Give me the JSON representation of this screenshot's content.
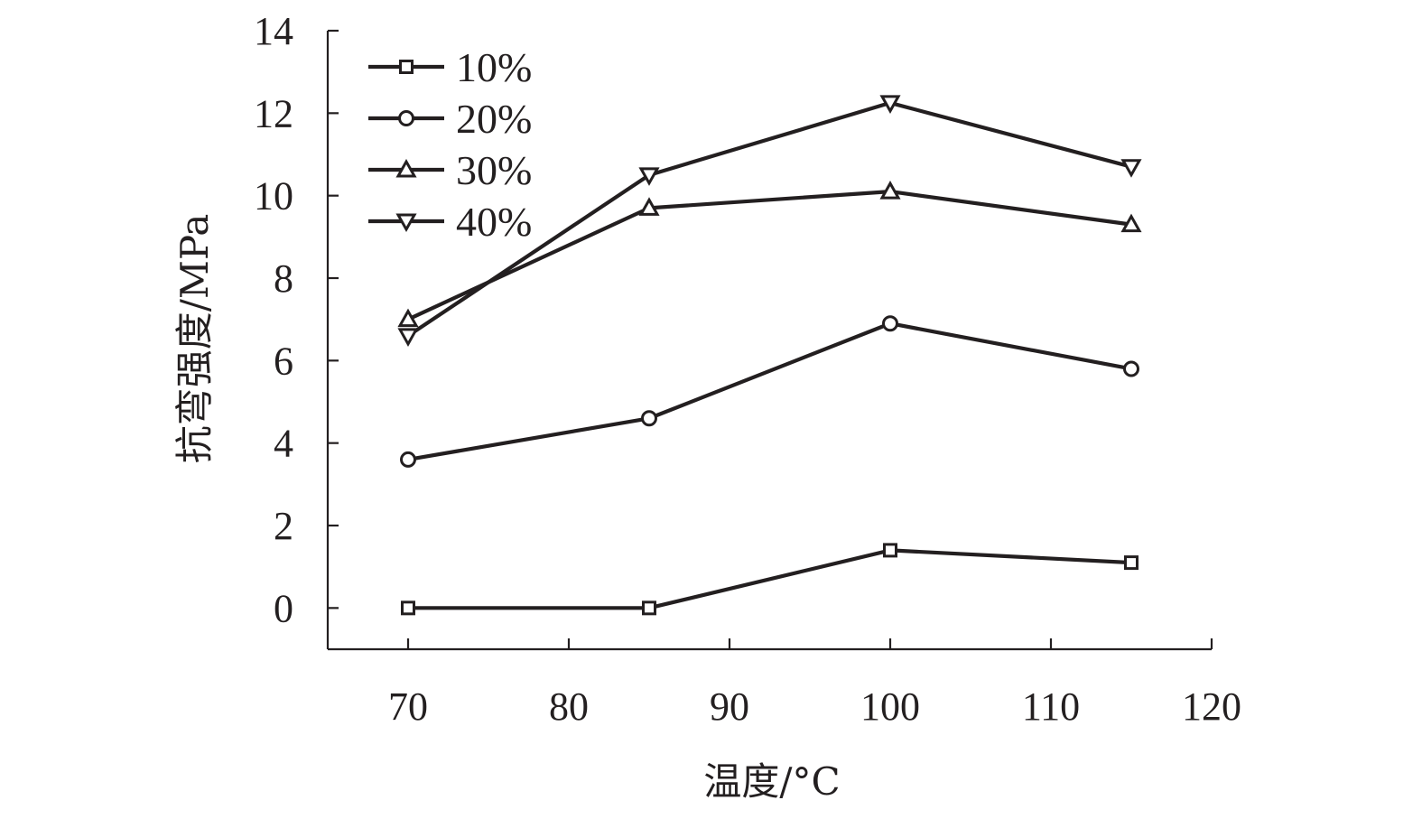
{
  "chart_data": {
    "type": "line",
    "xlabel": "温度/°C",
    "ylabel": "抗弯强度/MPa",
    "xlim": [
      65,
      120
    ],
    "ylim": [
      -1,
      14
    ],
    "xticks": [
      70,
      80,
      90,
      100,
      110,
      120
    ],
    "yticks": [
      0,
      2,
      4,
      6,
      8,
      10,
      12,
      14
    ],
    "x": [
      70,
      85,
      100,
      115
    ],
    "series": [
      {
        "name": "10%",
        "marker": "square",
        "values": [
          0,
          0,
          1.4,
          1.1
        ]
      },
      {
        "name": "20%",
        "marker": "circle",
        "values": [
          3.6,
          4.6,
          6.9,
          5.8
        ]
      },
      {
        "name": "30%",
        "marker": "triangle-up",
        "values": [
          7.0,
          9.7,
          10.1,
          9.3
        ]
      },
      {
        "name": "40%",
        "marker": "triangle-down",
        "values": [
          6.6,
          10.5,
          12.25,
          10.7
        ]
      }
    ],
    "legend_position": "top-left",
    "grid": false,
    "color": "#231f20"
  }
}
